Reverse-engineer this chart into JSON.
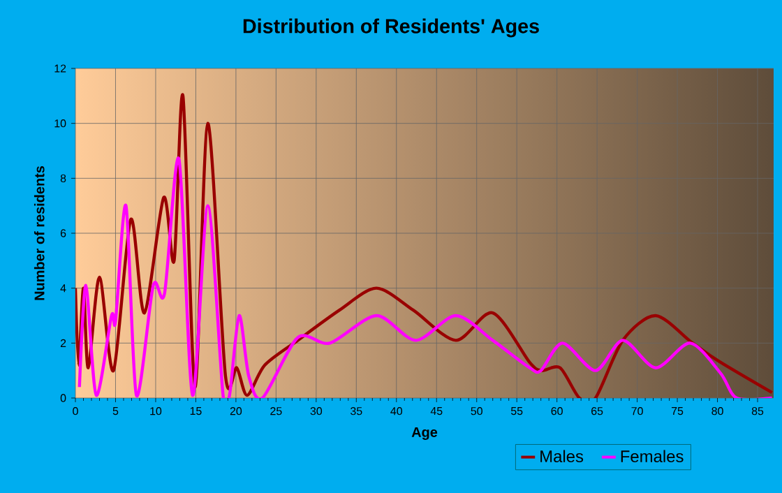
{
  "chart_data": {
    "type": "line",
    "title": "Distribution of Residents' Ages",
    "xlabel": "Age",
    "ylabel": "Number of residents",
    "xlim": [
      0,
      87
    ],
    "xticks": [
      0,
      5,
      10,
      15,
      20,
      25,
      30,
      35,
      40,
      45,
      50,
      55,
      60,
      65,
      70,
      75,
      80,
      85
    ],
    "ylim": [
      0,
      12
    ],
    "yticks": [
      0,
      2,
      4,
      6,
      8,
      10,
      12
    ],
    "grid": true,
    "legend": "bottom right",
    "series": [
      {
        "name": "Males",
        "color": "#990000",
        "x": [
          0,
          0.4,
          1,
          1.6,
          3,
          4.75,
          6.9,
          8.6,
          11,
          12.3,
          13.4,
          14.9,
          16.5,
          18.7,
          20.1,
          21.4,
          23.6,
          27.7,
          32.9,
          37.5,
          42.1,
          47.4,
          52,
          56.6,
          58.1,
          60.4,
          62.8,
          64.8,
          68.2,
          72.3,
          76.9,
          80.4,
          86.8
        ],
        "values": [
          4,
          1.2,
          4,
          1.1,
          4.4,
          1,
          6.5,
          3.1,
          7.3,
          5,
          11,
          0.4,
          10,
          0.8,
          1.1,
          0.1,
          1.2,
          2.1,
          3.2,
          4,
          3.2,
          2.1,
          3.1,
          1.3,
          1,
          1.1,
          0,
          0,
          2.1,
          3,
          2,
          1.3,
          0.2
        ]
      },
      {
        "name": "Females",
        "color": "#ff00ff",
        "x": [
          0.5,
          1.3,
          2.6,
          4.5,
          5,
          6.3,
          7.6,
          9.7,
          11.1,
          12.9,
          14.6,
          16.5,
          18.4,
          19.2,
          20.4,
          21.6,
          23.3,
          27.7,
          31.7,
          37.5,
          42.4,
          47.4,
          52,
          56.6,
          58,
          60.7,
          64.8,
          68.2,
          72.3,
          76.6,
          80.4,
          82.4,
          86.8
        ],
        "values": [
          0.4,
          4.1,
          0.1,
          3,
          2.8,
          7,
          0.1,
          4.1,
          3.8,
          8.7,
          0.1,
          7,
          0.1,
          0.1,
          3,
          0.8,
          0,
          2.2,
          2,
          3,
          2.1,
          3,
          2.1,
          1.1,
          1,
          2,
          1,
          2.1,
          1.1,
          2,
          0.9,
          0,
          0
        ]
      }
    ]
  }
}
